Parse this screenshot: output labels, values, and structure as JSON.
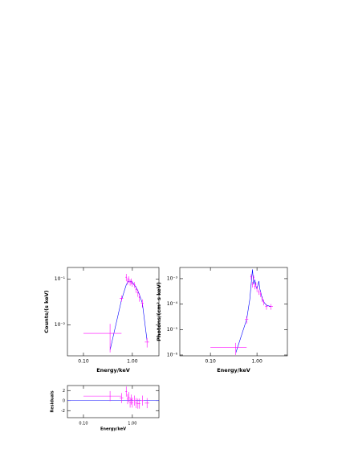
{
  "chart_data": [
    {
      "type": "spectrum",
      "ylabel": "Counts/(s keV)",
      "xlabel": "Energy/keV",
      "xlog": true,
      "ylog": true,
      "xlim": [
        0.047,
        3.5
      ],
      "xticks": [
        {
          "value": 0.1,
          "label": "0.10"
        },
        {
          "value": 1,
          "label": "1.00"
        }
      ],
      "ylim": [
        0.0021,
        0.18
      ],
      "yticks": [
        {
          "value": 0.1,
          "label": "10⁻¹"
        },
        {
          "value": 0.01,
          "label": "10⁻²"
        }
      ],
      "data_color": "#ff00ff",
      "model_color": "#0000ff",
      "x": [
        0.35,
        0.6,
        0.75,
        0.8,
        0.85,
        0.9,
        0.95,
        1.0,
        1.1,
        1.2,
        1.3,
        1.4,
        1.6,
        2.0
      ],
      "x_errors": [
        0.25,
        0.05,
        0.03,
        0.025,
        0.025,
        0.025,
        0.025,
        0.03,
        0.05,
        0.05,
        0.05,
        0.05,
        0.1,
        0.2
      ],
      "values": [
        0.0065,
        0.038,
        0.11,
        0.09,
        0.1,
        0.085,
        0.09,
        0.08,
        0.075,
        0.06,
        0.05,
        0.04,
        0.03,
        0.0042
      ],
      "errors": [
        0.004,
        0.006,
        0.02,
        0.015,
        0.015,
        0.013,
        0.013,
        0.012,
        0.011,
        0.01,
        0.009,
        0.008,
        0.006,
        0.001
      ],
      "model": [
        0.0028,
        0.035,
        0.075,
        0.085,
        0.09,
        0.09,
        0.088,
        0.085,
        0.075,
        0.065,
        0.055,
        0.045,
        0.03,
        0.0045
      ]
    },
    {
      "type": "spectrum",
      "ylabel": "Photons/(cm² s keV)",
      "xlabel": "Energy/keV",
      "xlog": true,
      "ylog": true,
      "xlim": [
        0.022,
        4.5
      ],
      "xticks": [
        {
          "value": 0.1,
          "label": "0.10"
        },
        {
          "value": 1,
          "label": "1.00"
        }
      ],
      "ylim": [
        9.3e-07,
        0.00275
      ],
      "yticks": [
        {
          "value": 0.001,
          "label": "10⁻³"
        },
        {
          "value": 0.0001,
          "label": "10⁻⁴"
        },
        {
          "value": 1e-05,
          "label": "10⁻⁵"
        },
        {
          "value": 1e-06,
          "label": "10⁻⁶"
        }
      ],
      "data_color": "#ff00ff",
      "model_color": "#0000ff",
      "x": [
        0.35,
        0.6,
        0.75,
        0.8,
        0.85,
        0.9,
        0.95,
        1.0,
        1.1,
        1.2,
        1.3,
        1.4,
        1.6,
        2.0
      ],
      "x_errors": [
        0.25,
        0.05,
        0.03,
        0.025,
        0.025,
        0.025,
        0.025,
        0.03,
        0.05,
        0.05,
        0.05,
        0.05,
        0.1,
        0.2
      ],
      "values": [
        2e-06,
        2.5e-05,
        0.0012,
        0.0006,
        0.0011,
        0.0005,
        0.0006,
        0.0004,
        0.0003,
        0.00025,
        0.00016,
        0.00012,
        8e-05,
        8e-05
      ],
      "errors": [
        1e-06,
        8e-06,
        0.0003,
        0.00015,
        0.00025,
        0.00012,
        0.00014,
        0.0001,
        7e-05,
        6e-05,
        4e-05,
        3e-05,
        2e-05,
        2e-05
      ],
      "model_x": [
        0.35,
        0.6,
        0.7,
        0.8,
        0.85,
        0.9,
        0.95,
        1.0,
        1.1,
        1.15,
        1.2,
        1.3,
        1.4,
        1.6,
        2.0
      ],
      "model": [
        1.2e-06,
        2.5e-05,
        0.00015,
        0.0023,
        0.0006,
        0.0009,
        0.0005,
        0.0004,
        0.0008,
        0.0004,
        0.0003,
        0.00016,
        0.00012,
        9e-05,
        8e-05
      ]
    },
    {
      "type": "residuals",
      "ylabel": "Residuals",
      "xlabel": "Energy/keV",
      "xlog": true,
      "ylog": false,
      "xlim": [
        0.047,
        3.5
      ],
      "xticks": [
        {
          "value": 0.1,
          "label": "0.10"
        },
        {
          "value": 1,
          "label": "1.00"
        }
      ],
      "ylim": [
        -3.4,
        3.0
      ],
      "yticks": [
        2,
        0,
        -2
      ],
      "data_color": "#ff00ff",
      "model_color": "#0000ff",
      "x": [
        0.35,
        0.6,
        0.75,
        0.8,
        0.85,
        0.9,
        0.95,
        1.0,
        1.1,
        1.2,
        1.3,
        1.4,
        1.6,
        2.0
      ],
      "x_errors": [
        0.25,
        0.05,
        0.03,
        0.025,
        0.025,
        0.025,
        0.025,
        0.03,
        0.05,
        0.05,
        0.05,
        0.05,
        0.1,
        0.2
      ],
      "values": [
        0.9,
        0.5,
        1.8,
        0.3,
        0.7,
        -0.4,
        0.2,
        -0.4,
        0,
        -0.5,
        -0.6,
        -0.6,
        0,
        -0.5
      ],
      "errors": [
        1,
        1,
        1,
        1,
        1,
        1,
        1,
        1,
        1,
        1,
        1,
        1,
        1,
        1
      ]
    }
  ]
}
